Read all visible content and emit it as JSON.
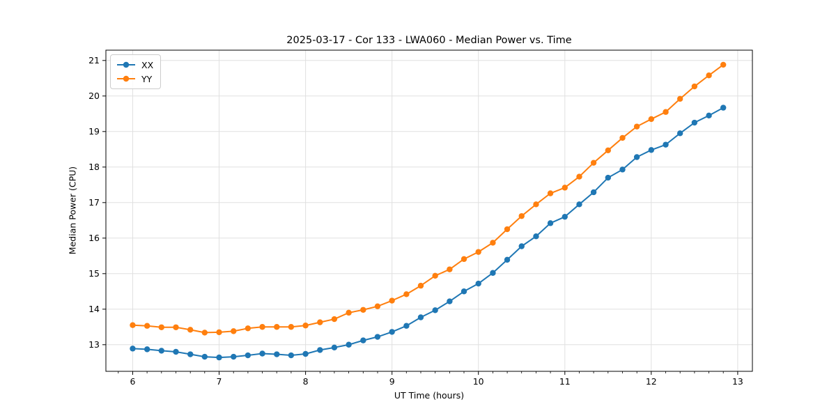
{
  "chart_data": {
    "type": "line",
    "title": "2025-03-17 - Cor 133 - LWA060 - Median Power vs. Time",
    "xlabel": "UT Time (hours)",
    "ylabel": "Median Power (CPU)",
    "xlim": [
      5.69,
      13.17
    ],
    "ylim": [
      12.25,
      21.29
    ],
    "xticks": [
      6,
      7,
      8,
      9,
      10,
      11,
      12,
      13
    ],
    "yticks": [
      13,
      14,
      15,
      16,
      17,
      18,
      19,
      20,
      21
    ],
    "x_minor_divisions": 6,
    "grid": true,
    "grid_color": "#e0e0e0",
    "legend_position": "upper-left",
    "marker": "circle",
    "x": [
      6.0,
      6.167,
      6.333,
      6.5,
      6.667,
      6.833,
      7.0,
      7.167,
      7.333,
      7.5,
      7.667,
      7.833,
      8.0,
      8.167,
      8.333,
      8.5,
      8.667,
      8.833,
      9.0,
      9.167,
      9.333,
      9.5,
      9.667,
      9.833,
      10.0,
      10.167,
      10.333,
      10.5,
      10.667,
      10.833,
      11.0,
      11.167,
      11.333,
      11.5,
      11.667,
      11.833,
      12.0,
      12.167,
      12.333,
      12.5,
      12.667,
      12.833
    ],
    "series": [
      {
        "name": "XX",
        "color": "#1f77b4",
        "values": [
          12.89,
          12.87,
          12.83,
          12.8,
          12.73,
          12.66,
          12.64,
          12.66,
          12.7,
          12.75,
          12.73,
          12.7,
          12.74,
          12.85,
          12.92,
          13.0,
          13.12,
          13.22,
          13.36,
          13.53,
          13.77,
          13.97,
          14.22,
          14.5,
          14.72,
          15.02,
          15.39,
          15.77,
          16.05,
          16.42,
          16.6,
          16.95,
          17.29,
          17.7,
          17.93,
          18.28,
          18.48,
          18.63,
          18.95,
          19.25,
          19.45,
          19.67
        ],
        "legend_label": "XX"
      },
      {
        "name": "YY",
        "color": "#ff7f0e",
        "values": [
          13.55,
          13.53,
          13.49,
          13.49,
          13.42,
          13.34,
          13.35,
          13.38,
          13.46,
          13.5,
          13.5,
          13.5,
          13.54,
          13.63,
          13.72,
          13.9,
          13.98,
          14.08,
          14.24,
          14.42,
          14.66,
          14.94,
          15.12,
          15.41,
          15.61,
          15.87,
          16.25,
          16.62,
          16.95,
          17.26,
          17.42,
          17.73,
          18.12,
          18.47,
          18.82,
          19.14,
          19.35,
          19.55,
          19.92,
          20.27,
          20.58,
          20.88
        ],
        "legend_label": "YY"
      }
    ]
  }
}
